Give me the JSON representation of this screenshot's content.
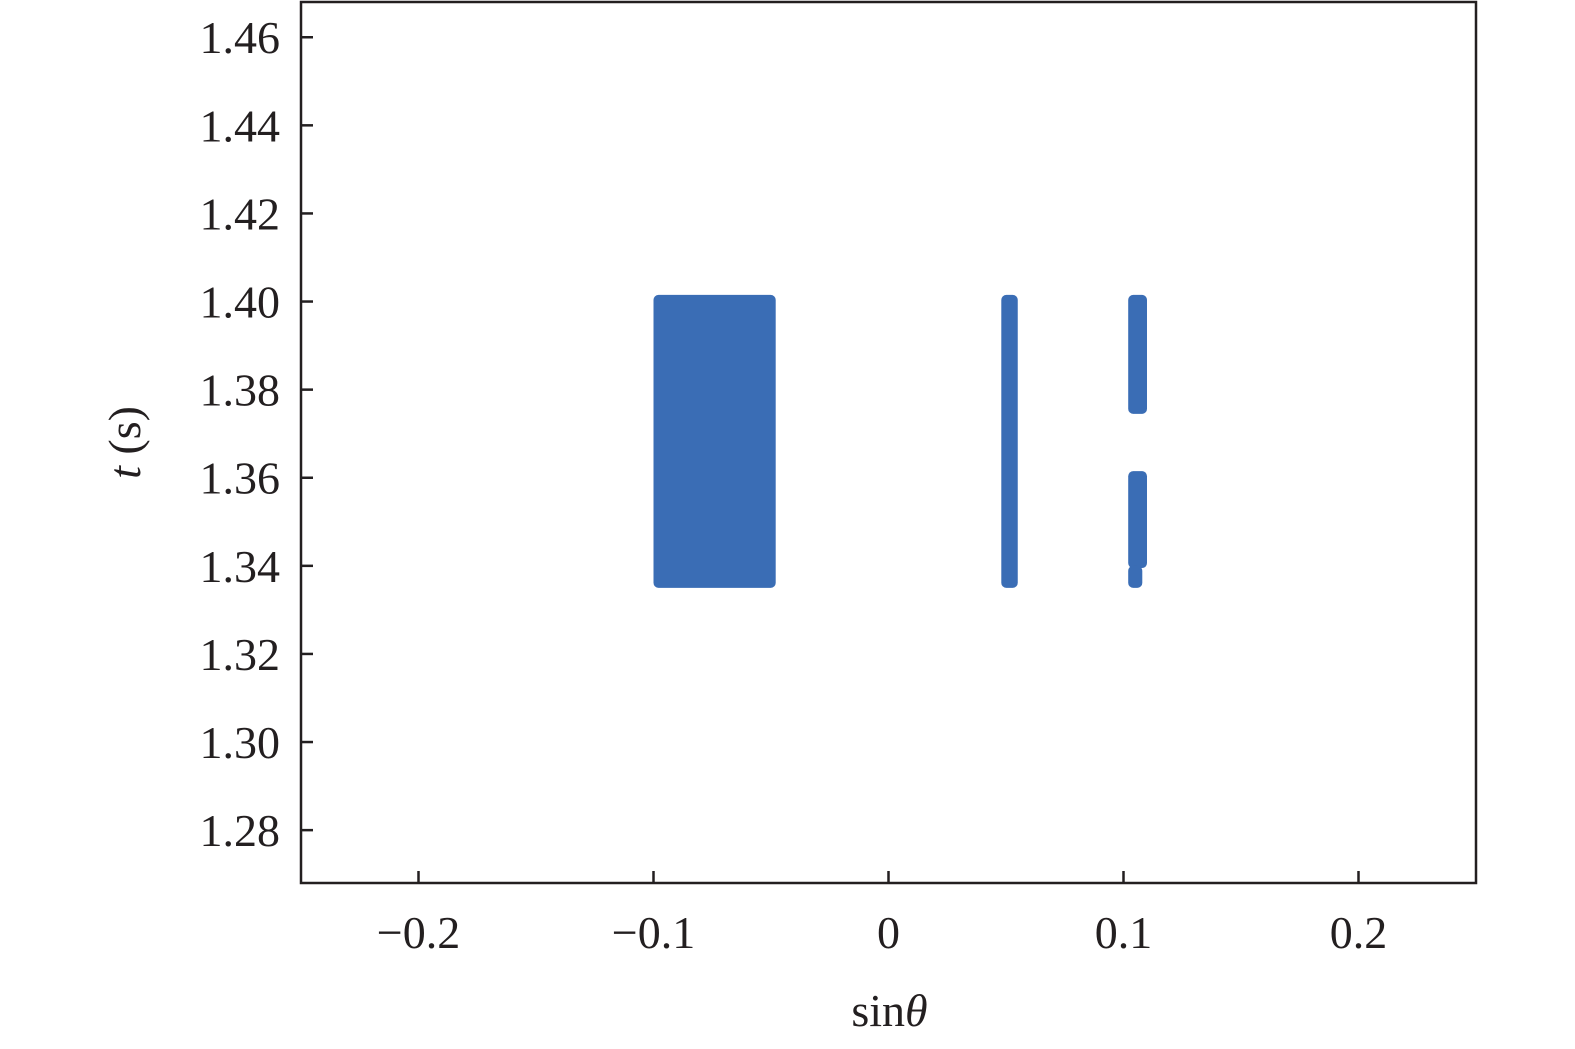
{
  "chart_data": {
    "type": "scatter",
    "xlabel_main": "sin",
    "xlabel_symbol": "θ",
    "ylabel_symbol": "t",
    "ylabel_unit": " (s)",
    "xlim": [
      -0.25,
      0.25
    ],
    "ylim": [
      1.268,
      1.468
    ],
    "xticks": [
      -0.2,
      -0.1,
      0,
      0.1,
      0.2
    ],
    "xtick_labels": [
      "−0.2",
      "−0.1",
      "0",
      "0.1",
      "0.2"
    ],
    "yticks": [
      1.28,
      1.3,
      1.32,
      1.34,
      1.36,
      1.38,
      1.4,
      1.42,
      1.44,
      1.46
    ],
    "ytick_labels": [
      "1.28",
      "1.30",
      "1.32",
      "1.34",
      "1.36",
      "1.38",
      "1.40",
      "1.42",
      "1.44",
      "1.46"
    ],
    "grid": false,
    "legend": "none",
    "color": "#3a6db5",
    "regions": [
      {
        "x0": -0.1,
        "x1": -0.048,
        "y0": 1.335,
        "y1": 1.4015
      },
      {
        "x0": 0.048,
        "x1": 0.055,
        "y0": 1.335,
        "y1": 1.4015
      },
      {
        "x0": 0.102,
        "x1": 0.11,
        "y0": 1.3745,
        "y1": 1.4015
      },
      {
        "x0": 0.102,
        "x1": 0.11,
        "y0": 1.3395,
        "y1": 1.3615
      },
      {
        "x0": 0.102,
        "x1": 0.108,
        "y0": 1.335,
        "y1": 1.34
      }
    ]
  }
}
